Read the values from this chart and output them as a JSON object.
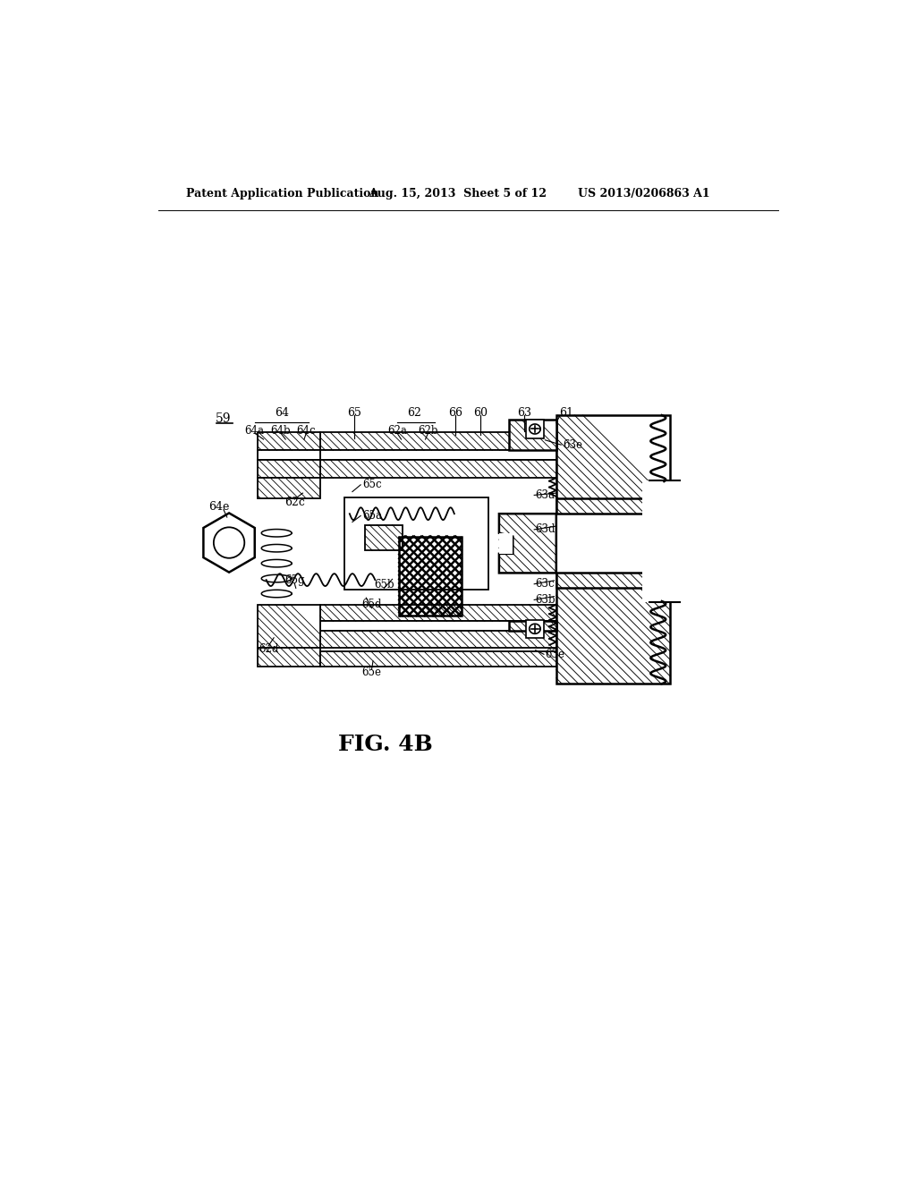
{
  "header_left": "Patent Application Publication",
  "header_center": "Aug. 15, 2013  Sheet 5 of 12",
  "header_right": "US 2013/0206863 A1",
  "fig_caption": "FIG. 4B",
  "bg_color": "#ffffff",
  "line_color": "#000000"
}
